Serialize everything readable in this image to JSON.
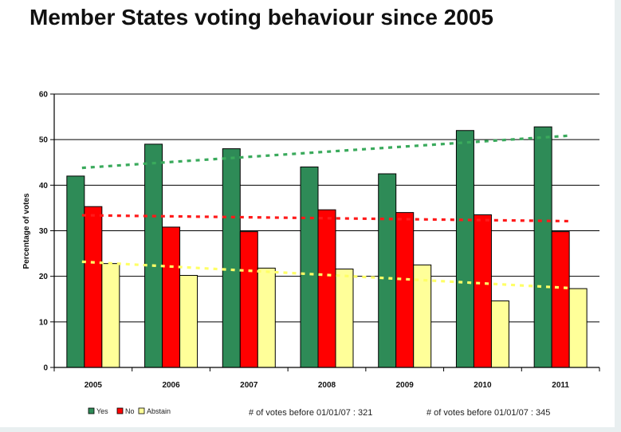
{
  "title": "Member States voting behaviour since 2005",
  "colors": {
    "yes": "#2e8b57",
    "no": "#ff0000",
    "abstain": "#ffff99",
    "trend_yes": "#3aaa5c",
    "trend_no": "#ff1a1a",
    "trend_abstain": "#ffff66"
  },
  "chart_data": {
    "type": "bar",
    "categories": [
      "2005",
      "2006",
      "2007",
      "2008",
      "2009",
      "2010",
      "2011"
    ],
    "series": [
      {
        "name": "Yes",
        "values": [
          42,
          49,
          48,
          44,
          42.5,
          52,
          52.8
        ]
      },
      {
        "name": "No",
        "values": [
          35.3,
          30.8,
          29.8,
          34.6,
          34,
          33.5,
          29.8
        ]
      },
      {
        "name": "Abstain",
        "values": [
          22.8,
          20.2,
          21.8,
          21.6,
          22.5,
          14.6,
          17.3
        ]
      }
    ],
    "trendlines": [
      {
        "series": "Yes",
        "start": 43.8,
        "end": 50.9
      },
      {
        "series": "No",
        "start": 33.4,
        "end": 32.1
      },
      {
        "series": "Abstain",
        "start": 23.2,
        "end": 17.4
      }
    ],
    "ylabel": "Percentage of votes",
    "xlabel": "",
    "ylim": [
      0,
      60
    ],
    "yticks": [
      "0",
      "10",
      "20",
      "30",
      "40",
      "50",
      "60"
    ],
    "grid": true,
    "legend_position": "bottom-left",
    "legend": [
      "Yes",
      "No",
      "Abstain"
    ],
    "notes": [
      "# of votes before 01/01/07 : 321",
      "# of votes before 01/01/07 : 345"
    ]
  }
}
